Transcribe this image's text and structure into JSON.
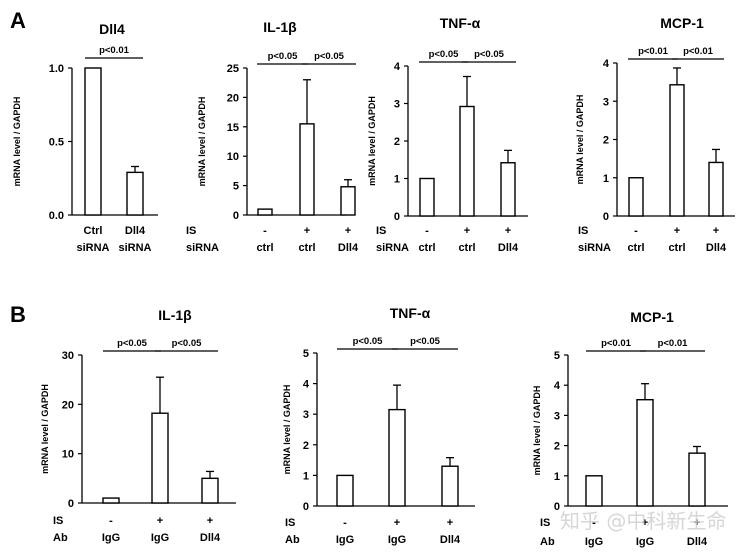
{
  "figure": {
    "panel_letters": [
      "A",
      "B"
    ],
    "watermark": "知乎 @中科新生命",
    "colors": {
      "bar_fill": "#ffffff",
      "stroke": "#000000",
      "watermark": "#cfcfcf"
    }
  },
  "chart_data": [
    {
      "id": "A1",
      "panel": "A",
      "type": "bar",
      "title": "Dll4",
      "ylabel": "mRNA level / GAPDH",
      "ylim": [
        0,
        1.0
      ],
      "yticks": [
        0,
        0.5,
        1.0
      ],
      "ytick_labels": [
        "0.0",
        "0.5",
        "1.0"
      ],
      "row_labels": [],
      "categories": [
        [
          "Ctrl",
          "siRNA"
        ],
        [
          "Dll4",
          "siRNA"
        ]
      ],
      "values": [
        1.0,
        0.29
      ],
      "error_upper": [
        null,
        0.33
      ],
      "significance": [
        {
          "from": 0,
          "to": 1,
          "label": "p<0.01"
        }
      ]
    },
    {
      "id": "A2",
      "panel": "A",
      "type": "bar",
      "title": "IL-1β",
      "ylabel": "mRNA level / GAPDH",
      "ylim": [
        0,
        25
      ],
      "yticks": [
        0,
        5,
        10,
        15,
        20,
        25
      ],
      "ytick_labels": [
        "0",
        "5",
        "10",
        "15",
        "20",
        "25"
      ],
      "row_labels": [
        "IS",
        "siRNA"
      ],
      "categories": [
        [
          "-",
          "ctrl"
        ],
        [
          "+",
          "ctrl"
        ],
        [
          "+",
          "Dll4"
        ]
      ],
      "values": [
        1.0,
        15.5,
        4.8
      ],
      "error_upper": [
        null,
        23.0,
        6.0
      ],
      "significance": [
        {
          "from": 0,
          "to": 1,
          "label": "p<0.05"
        },
        {
          "from": 1,
          "to": 2,
          "label": "p<0.05"
        }
      ]
    },
    {
      "id": "A3",
      "panel": "A",
      "type": "bar",
      "title": "TNF-α",
      "ylabel": "mRNA level / GAPDH",
      "ylim": [
        0,
        4
      ],
      "yticks": [
        0,
        1,
        2,
        3,
        4
      ],
      "ytick_labels": [
        "0",
        "1",
        "2",
        "3",
        "4"
      ],
      "row_labels": [
        "IS",
        "siRNA"
      ],
      "categories": [
        [
          "-",
          "ctrl"
        ],
        [
          "+",
          "ctrl"
        ],
        [
          "+",
          "Dll4"
        ]
      ],
      "values": [
        1.0,
        2.92,
        1.42
      ],
      "error_upper": [
        null,
        3.72,
        1.75
      ],
      "significance": [
        {
          "from": 0,
          "to": 1,
          "label": "p<0.05"
        },
        {
          "from": 1,
          "to": 2,
          "label": "p<0.05"
        }
      ]
    },
    {
      "id": "A4",
      "panel": "A",
      "type": "bar",
      "title": "MCP-1",
      "ylabel": "mRNA level / GAPDH",
      "ylim": [
        0,
        4
      ],
      "yticks": [
        0,
        1,
        2,
        3,
        4
      ],
      "ytick_labels": [
        "0",
        "1",
        "2",
        "3",
        "4"
      ],
      "row_labels": [
        "IS",
        "siRNA"
      ],
      "categories": [
        [
          "-",
          "ctrl"
        ],
        [
          "+",
          "ctrl"
        ],
        [
          "+",
          "Dll4"
        ]
      ],
      "values": [
        1.0,
        3.43,
        1.4
      ],
      "error_upper": [
        null,
        3.87,
        1.74
      ],
      "significance": [
        {
          "from": 0,
          "to": 1,
          "label": "p<0.01"
        },
        {
          "from": 1,
          "to": 2,
          "label": "p<0.01"
        }
      ]
    },
    {
      "id": "B1",
      "panel": "B",
      "type": "bar",
      "title": "IL-1β",
      "ylabel": "mRNA level / GAPDH",
      "ylim": [
        0,
        30
      ],
      "yticks": [
        0,
        10,
        20,
        30
      ],
      "ytick_labels": [
        "0",
        "10",
        "20",
        "30"
      ],
      "row_labels": [
        "IS",
        "Ab"
      ],
      "categories": [
        [
          "-",
          "IgG"
        ],
        [
          "+",
          "IgG"
        ],
        [
          "+",
          "Dll4"
        ]
      ],
      "values": [
        1.0,
        18.2,
        5.0
      ],
      "error_upper": [
        null,
        25.5,
        6.4
      ],
      "significance": [
        {
          "from": 0,
          "to": 1,
          "label": "p<0.05"
        },
        {
          "from": 1,
          "to": 2,
          "label": "p<0.05"
        }
      ]
    },
    {
      "id": "B2",
      "panel": "B",
      "type": "bar",
      "title": "TNF-α",
      "ylabel": "mRNA level / GAPDH",
      "ylim": [
        0,
        5
      ],
      "yticks": [
        0,
        1,
        2,
        3,
        4,
        5
      ],
      "ytick_labels": [
        "0",
        "1",
        "2",
        "3",
        "4",
        "5"
      ],
      "row_labels": [
        "IS",
        "Ab"
      ],
      "categories": [
        [
          "-",
          "IgG"
        ],
        [
          "+",
          "IgG"
        ],
        [
          "+",
          "Dll4"
        ]
      ],
      "values": [
        1.0,
        3.15,
        1.3
      ],
      "error_upper": [
        null,
        3.95,
        1.58
      ],
      "significance": [
        {
          "from": 0,
          "to": 1,
          "label": "p<0.05"
        },
        {
          "from": 1,
          "to": 2,
          "label": "p<0.05"
        }
      ]
    },
    {
      "id": "B3",
      "panel": "B",
      "type": "bar",
      "title": "MCP-1",
      "ylabel": "mRNA level / GAPDH",
      "ylim": [
        0,
        5
      ],
      "yticks": [
        0,
        1,
        2,
        3,
        4,
        5
      ],
      "ytick_labels": [
        "0",
        "1",
        "2",
        "3",
        "4",
        "5"
      ],
      "row_labels": [
        "IS",
        "Ab"
      ],
      "categories": [
        [
          "-",
          "IgG"
        ],
        [
          "+",
          "IgG"
        ],
        [
          "+",
          "Dll4"
        ]
      ],
      "values": [
        1.0,
        3.52,
        1.75
      ],
      "error_upper": [
        null,
        4.05,
        1.97
      ],
      "significance": [
        {
          "from": 0,
          "to": 1,
          "label": "p<0.01"
        },
        {
          "from": 1,
          "to": 2,
          "label": "p<0.01"
        }
      ]
    }
  ]
}
